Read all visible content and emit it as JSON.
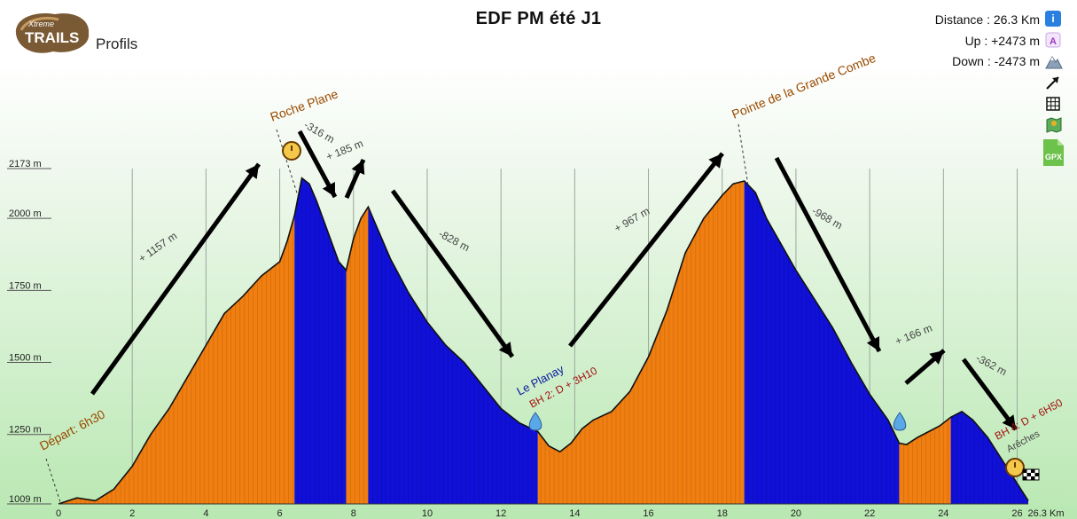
{
  "header": {
    "title": "EDF PM été J1",
    "section": "Profils",
    "logo_text_top": "Xtreme",
    "logo_text_main": "TRAILS",
    "distance": "Distance : 26.3 Km",
    "up": "Up : +2473 m",
    "down": "Down : -2473 m",
    "icons": [
      "info-icon",
      "ascent-icon",
      "descent-mountain-icon",
      "arrow-up-right-icon",
      "grid-icon",
      "map-icon",
      "gpx-file-icon"
    ]
  },
  "colors": {
    "climb": "#f07e10",
    "descent": "#1010d8",
    "bg_bottom": "#b9e8b2",
    "label_orange": "#9a4a00",
    "label_red": "#a31010",
    "label_blue": "#0a1aa0"
  },
  "chart_data": {
    "type": "area",
    "xlabel": "",
    "ylabel": "",
    "x_unit": "Km",
    "xlim": [
      0,
      26.3
    ],
    "ylim": [
      1009,
      2173
    ],
    "x_ticks": [
      0,
      2,
      4,
      6,
      8,
      10,
      12,
      14,
      16,
      18,
      20,
      22,
      24,
      26
    ],
    "x_tick_labels": [
      "0",
      "2",
      "4",
      "6",
      "8",
      "10",
      "12",
      "14",
      "16",
      "18",
      "20",
      "22",
      "24",
      "26"
    ],
    "x_end_label": "26.3 Km",
    "y_ticks": [
      1009,
      1250,
      1500,
      1750,
      2000,
      2173
    ],
    "y_tick_labels": [
      "1009 m",
      "1250 m",
      "1500 m",
      "1750 m",
      "2000 m",
      "2173 m"
    ],
    "profile": {
      "x": [
        0,
        0.5,
        1.0,
        1.5,
        2.0,
        2.5,
        3.0,
        3.5,
        4.0,
        4.5,
        5.0,
        5.5,
        6.0,
        6.2,
        6.4,
        6.6,
        6.8,
        7.0,
        7.2,
        7.4,
        7.6,
        7.8,
        8.0,
        8.2,
        8.4,
        8.6,
        8.8,
        9.0,
        9.5,
        10.0,
        10.5,
        11.0,
        11.5,
        12.0,
        12.5,
        13.0,
        13.3,
        13.6,
        13.9,
        14.2,
        14.5,
        15.0,
        15.5,
        16.0,
        16.5,
        17.0,
        17.5,
        18.0,
        18.3,
        18.6,
        18.9,
        19.2,
        19.6,
        20.0,
        20.5,
        21.0,
        21.5,
        22.0,
        22.5,
        22.8,
        23.0,
        23.3,
        23.6,
        23.9,
        24.2,
        24.5,
        24.8,
        25.2,
        25.6,
        26.0,
        26.3
      ],
      "y": [
        1009,
        1030,
        1020,
        1060,
        1140,
        1250,
        1340,
        1450,
        1560,
        1670,
        1730,
        1800,
        1850,
        1920,
        2010,
        2140,
        2120,
        2060,
        1990,
        1920,
        1850,
        1820,
        1930,
        2000,
        2040,
        1980,
        1920,
        1860,
        1740,
        1640,
        1560,
        1500,
        1420,
        1340,
        1290,
        1260,
        1210,
        1190,
        1220,
        1270,
        1300,
        1330,
        1400,
        1520,
        1680,
        1880,
        2000,
        2080,
        2120,
        2130,
        2090,
        2000,
        1910,
        1820,
        1720,
        1620,
        1500,
        1390,
        1300,
        1220,
        1215,
        1240,
        1260,
        1280,
        1310,
        1330,
        1300,
        1240,
        1160,
        1080,
        1020
      ]
    },
    "segments": [
      {
        "from": 0,
        "to": 6.4,
        "kind": "climb"
      },
      {
        "from": 6.4,
        "to": 7.8,
        "kind": "descent"
      },
      {
        "from": 7.8,
        "to": 8.4,
        "kind": "climb"
      },
      {
        "from": 8.4,
        "to": 13.0,
        "kind": "descent"
      },
      {
        "from": 13.0,
        "to": 18.6,
        "kind": "climb"
      },
      {
        "from": 18.6,
        "to": 22.8,
        "kind": "descent"
      },
      {
        "from": 22.8,
        "to": 24.2,
        "kind": "climb"
      },
      {
        "from": 24.2,
        "to": 26.3,
        "kind": "descent"
      }
    ],
    "peaks": [
      {
        "label": "Roche Plane",
        "x": 6.5
      },
      {
        "label": "Pointe de la Grande Combe",
        "x": 18.7
      }
    ],
    "annotations": [
      {
        "text": "Départ: 6h30",
        "kind": "orange"
      },
      {
        "text": "BH 2: D + 3H10",
        "kind": "red"
      },
      {
        "text": "Le Planay",
        "kind": "blue"
      },
      {
        "text": "BH 4: D + 6H50",
        "kind": "red"
      },
      {
        "text": "Arêches",
        "kind": "gray"
      }
    ],
    "gains": [
      "+ 1157 m",
      "-316 m",
      "+ 185 m",
      "-828 m",
      "+ 967 m",
      "-968 m",
      "+ 166 m",
      "-362 m"
    ]
  }
}
